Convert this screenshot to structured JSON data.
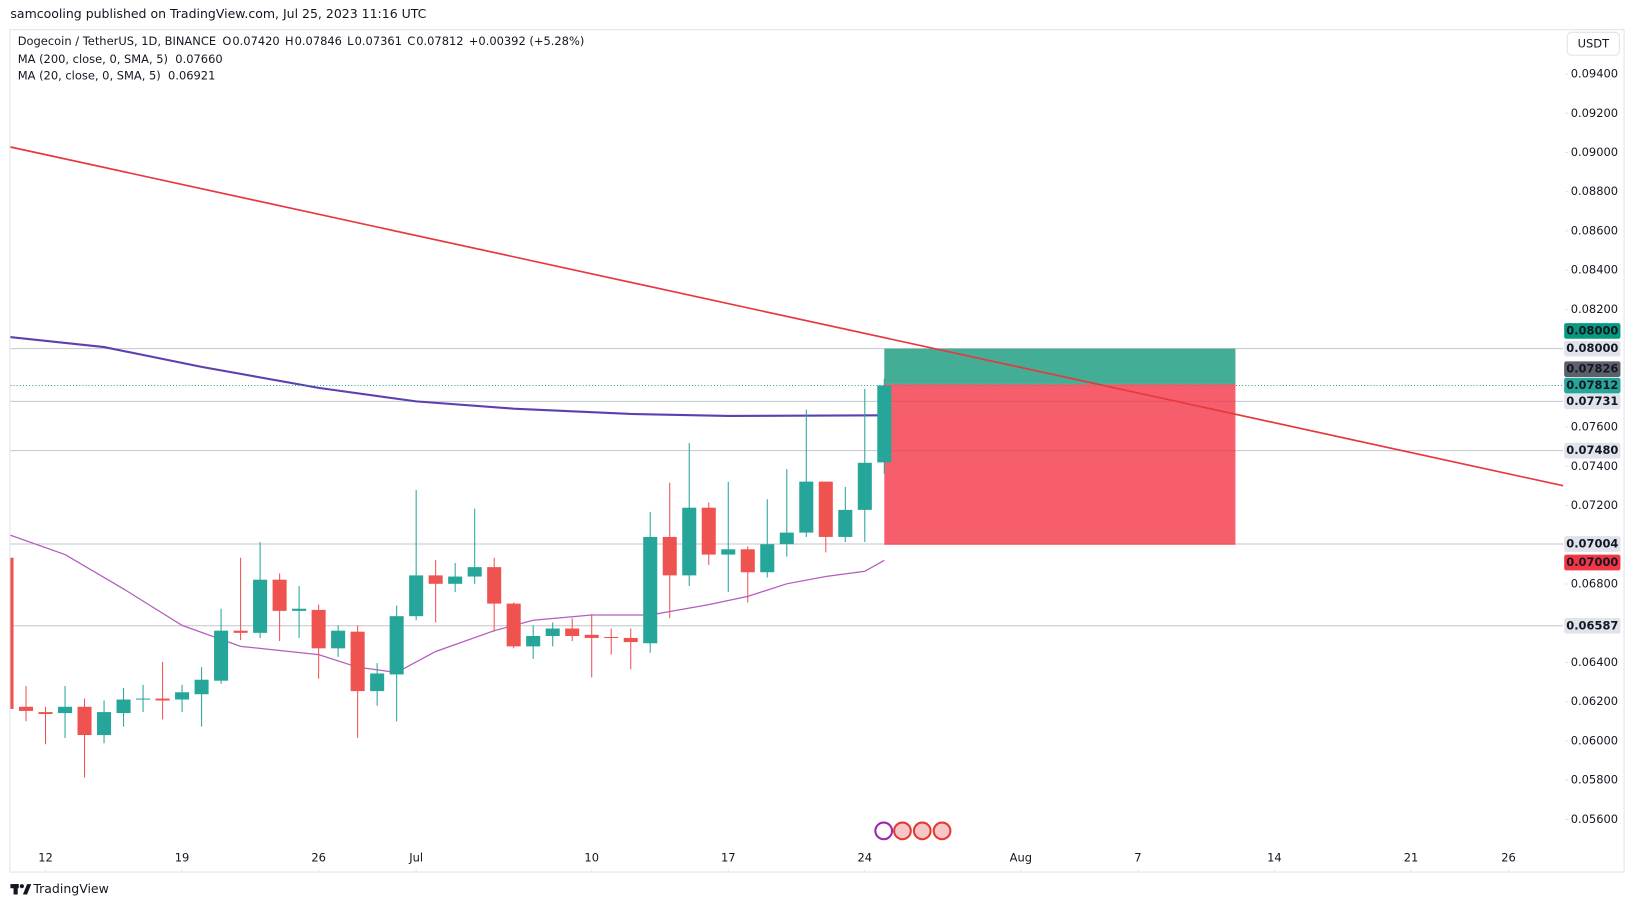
{
  "chart_data": {
    "type": "candlestick",
    "header": {
      "published": "samcooling published on TradingView.com, Jul 25, 2023 11:16 UTC",
      "symbol": "Dogecoin / TetherUS, 1D, BINANCE",
      "ohlc": [
        {
          "key": "O",
          "text": "0.07420"
        },
        {
          "key": "H",
          "text": "0.07846"
        },
        {
          "key": "L",
          "text": "0.07361"
        },
        {
          "key": "C",
          "text": "0.07812"
        }
      ],
      "change": "+0.00392 (+5.28%)"
    },
    "currency": "USDT",
    "brand": "TradingView",
    "up_color": "#26a69a",
    "down_color": "#ef5350",
    "x": [
      161,
      162,
      163,
      164,
      165,
      166,
      167,
      168,
      169,
      170,
      171,
      172,
      173,
      174,
      175,
      176,
      177,
      178,
      179,
      180,
      181,
      182,
      183,
      184,
      185,
      186,
      187,
      188,
      189,
      190,
      191,
      192,
      193,
      194,
      195,
      196,
      197,
      198,
      199,
      200,
      201,
      202,
      203,
      204,
      205,
      206
    ],
    "open": [
      0.06934,
      0.06174,
      0.06147,
      0.06142,
      0.06174,
      0.0603,
      0.06142,
      0.06211,
      0.06216,
      0.06211,
      0.06238,
      0.06307,
      0.06562,
      0.06551,
      0.06822,
      0.06663,
      0.06668,
      0.06472,
      0.06557,
      0.06254,
      0.06339,
      0.06636,
      0.06844,
      0.06801,
      0.06838,
      0.06886,
      0.067,
      0.06482,
      0.06535,
      0.06573,
      0.06541,
      0.0653,
      0.06525,
      0.06498,
      0.0704,
      0.06844,
      0.07189,
      0.0695,
      0.06977,
      0.0686,
      0.07003,
      0.07062,
      0.07322,
      0.0704,
      0.07178,
      0.0742
    ],
    "high": [
      0.06934,
      0.0628,
      0.06174,
      0.0628,
      0.06216,
      0.06206,
      0.0627,
      0.06286,
      0.06403,
      0.06286,
      0.06376,
      0.06674,
      0.06934,
      0.07014,
      0.06854,
      0.0679,
      0.06695,
      0.06589,
      0.06589,
      0.06397,
      0.0669,
      0.07279,
      0.06923,
      0.06907,
      0.07184,
      0.06934,
      0.06706,
      0.06589,
      0.06604,
      0.06626,
      0.06647,
      0.06573,
      0.06573,
      0.07168,
      0.07317,
      0.07519,
      0.07216,
      0.07322,
      0.06992,
      0.07232,
      0.07386,
      0.07689,
      0.07322,
      0.07295,
      0.07795,
      0.07846
    ],
    "low": [
      0.06163,
      0.061,
      0.05983,
      0.06015,
      0.05813,
      0.05988,
      0.06073,
      0.06147,
      0.0611,
      0.06147,
      0.06073,
      0.06291,
      0.06514,
      0.06525,
      0.06509,
      0.06525,
      0.06317,
      0.06429,
      0.06015,
      0.06179,
      0.061,
      0.06615,
      0.06604,
      0.06759,
      0.06801,
      0.06557,
      0.06472,
      0.06418,
      0.06482,
      0.06509,
      0.06323,
      0.0644,
      0.06365,
      0.0645,
      0.06626,
      0.0679,
      0.06897,
      0.06759,
      0.06706,
      0.06833,
      0.06939,
      0.0704,
      0.06961,
      0.07014,
      0.07014,
      0.07361
    ],
    "close": [
      0.06163,
      0.06153,
      0.06137,
      0.06174,
      0.0603,
      0.06147,
      0.06211,
      0.06216,
      0.06206,
      0.06248,
      0.06312,
      0.06562,
      0.06551,
      0.06822,
      0.06663,
      0.06674,
      0.06472,
      0.06562,
      0.06254,
      0.06344,
      0.06636,
      0.06844,
      0.06801,
      0.06838,
      0.06886,
      0.067,
      0.06482,
      0.06535,
      0.06573,
      0.06535,
      0.06525,
      0.06525,
      0.06504,
      0.0704,
      0.06844,
      0.07189,
      0.0695,
      0.06977,
      0.0686,
      0.07003,
      0.07062,
      0.07322,
      0.0704,
      0.07178,
      0.07418,
      0.07812
    ],
    "indicators": [
      {
        "name": "MA (200, close, 0, SMA, 5)",
        "value_text": "0.07660",
        "color": "#5e3fb0",
        "x": [
          161,
          166,
          171,
          177,
          182,
          187,
          193,
          198,
          206
        ],
        "values": [
          0.08061,
          0.08008,
          0.07907,
          0.078,
          0.07731,
          0.07694,
          0.07667,
          0.07657,
          0.0766
        ]
      },
      {
        "name": "MA (20, close, 0, SMA, 5)",
        "value_text": "0.06921",
        "color": "#b45cbf",
        "x": [
          161,
          164,
          167,
          170,
          173,
          177,
          179,
          181,
          183,
          186,
          188,
          191,
          194,
          197,
          199,
          201,
          203,
          205,
          206
        ],
        "values": [
          0.07056,
          0.0695,
          0.06775,
          0.06589,
          0.06482,
          0.0644,
          0.06376,
          0.06349,
          0.06456,
          0.06562,
          0.06615,
          0.06642,
          0.06642,
          0.06695,
          0.06737,
          0.06801,
          0.06838,
          0.06865,
          0.06921
        ]
      }
    ],
    "trendline": {
      "color": "#e8383d",
      "x": [
        161.2,
        240.8
      ],
      "values": [
        0.09028,
        0.07301
      ]
    },
    "position": {
      "x": [
        206,
        224
      ],
      "entry": 0.0782,
      "target": 0.08,
      "stop": 0.07,
      "profit_color": "#22a082",
      "loss_color": "#f23645"
    },
    "levels": [
      0.08,
      0.07731,
      0.0748,
      0.07004,
      0.06587
    ],
    "last_price": {
      "value": 0.07812,
      "color": "#26a69a"
    },
    "price_labels": [
      {
        "value": 0.08,
        "label": "0.08000",
        "color": "#089981",
        "text_color": "#ffffff"
      },
      {
        "value": 0.08,
        "label": "0.08000",
        "color": "#e0e3eb",
        "text_color": "#131722"
      },
      {
        "value": 0.07826,
        "label": "0.07826",
        "color": "#5d606b",
        "text_color": "#ffffff"
      },
      {
        "value": 0.07812,
        "label": "0.07812",
        "color": "#26a69a",
        "text_color": "#ffffff"
      },
      {
        "value": 0.07731,
        "label": "0.07731",
        "color": "#e0e3eb",
        "text_color": "#131722"
      },
      {
        "value": 0.0748,
        "label": "0.07480",
        "color": "#e0e3eb",
        "text_color": "#131722"
      },
      {
        "value": 0.07004,
        "label": "0.07004",
        "color": "#e0e3eb",
        "text_color": "#131722"
      },
      {
        "value": 0.07,
        "label": "0.07000",
        "color": "#f23645",
        "text_color": "#ffffff"
      },
      {
        "value": 0.06587,
        "label": "0.06587",
        "color": "#e0e3eb",
        "text_color": "#131722"
      }
    ],
    "xlim": [
      161.2,
      240.8
    ],
    "ylim": [
      0.05334,
      0.09618
    ],
    "xticks": [
      {
        "value": 163,
        "label": "12"
      },
      {
        "value": 170,
        "label": "19"
      },
      {
        "value": 177,
        "label": "26"
      },
      {
        "value": 182,
        "label": "Jul"
      },
      {
        "value": 191,
        "label": "10"
      },
      {
        "value": 198,
        "label": "17"
      },
      {
        "value": 205,
        "label": "24"
      },
      {
        "value": 213,
        "label": "Aug"
      },
      {
        "value": 219,
        "label": "7"
      },
      {
        "value": 226,
        "label": "14"
      },
      {
        "value": 233,
        "label": "21"
      },
      {
        "value": 238,
        "label": "26"
      }
    ],
    "yticks": [
      {
        "value": 0.056,
        "label": "0.05600"
      },
      {
        "value": 0.058,
        "label": "0.05800"
      },
      {
        "value": 0.06,
        "label": "0.06000"
      },
      {
        "value": 0.062,
        "label": "0.06200"
      },
      {
        "value": 0.064,
        "label": "0.06400"
      },
      {
        "value": 0.066,
        "label": "0.06600"
      },
      {
        "value": 0.068,
        "label": "0.06800"
      },
      {
        "value": 0.07,
        "label": "0.07000"
      },
      {
        "value": 0.072,
        "label": "0.07200"
      },
      {
        "value": 0.074,
        "label": "0.07400"
      },
      {
        "value": 0.076,
        "label": "0.07600"
      },
      {
        "value": 0.078,
        "label": "0.07800"
      },
      {
        "value": 0.08,
        "label": "0.08000"
      },
      {
        "value": 0.082,
        "label": "0.08200"
      },
      {
        "value": 0.084,
        "label": "0.08400"
      },
      {
        "value": 0.086,
        "label": "0.08600"
      },
      {
        "value": 0.088,
        "label": "0.08800"
      },
      {
        "value": 0.09,
        "label": "0.09000"
      },
      {
        "value": 0.092,
        "label": "0.09200"
      },
      {
        "value": 0.094,
        "label": "0.09400"
      }
    ],
    "grid": false
  }
}
